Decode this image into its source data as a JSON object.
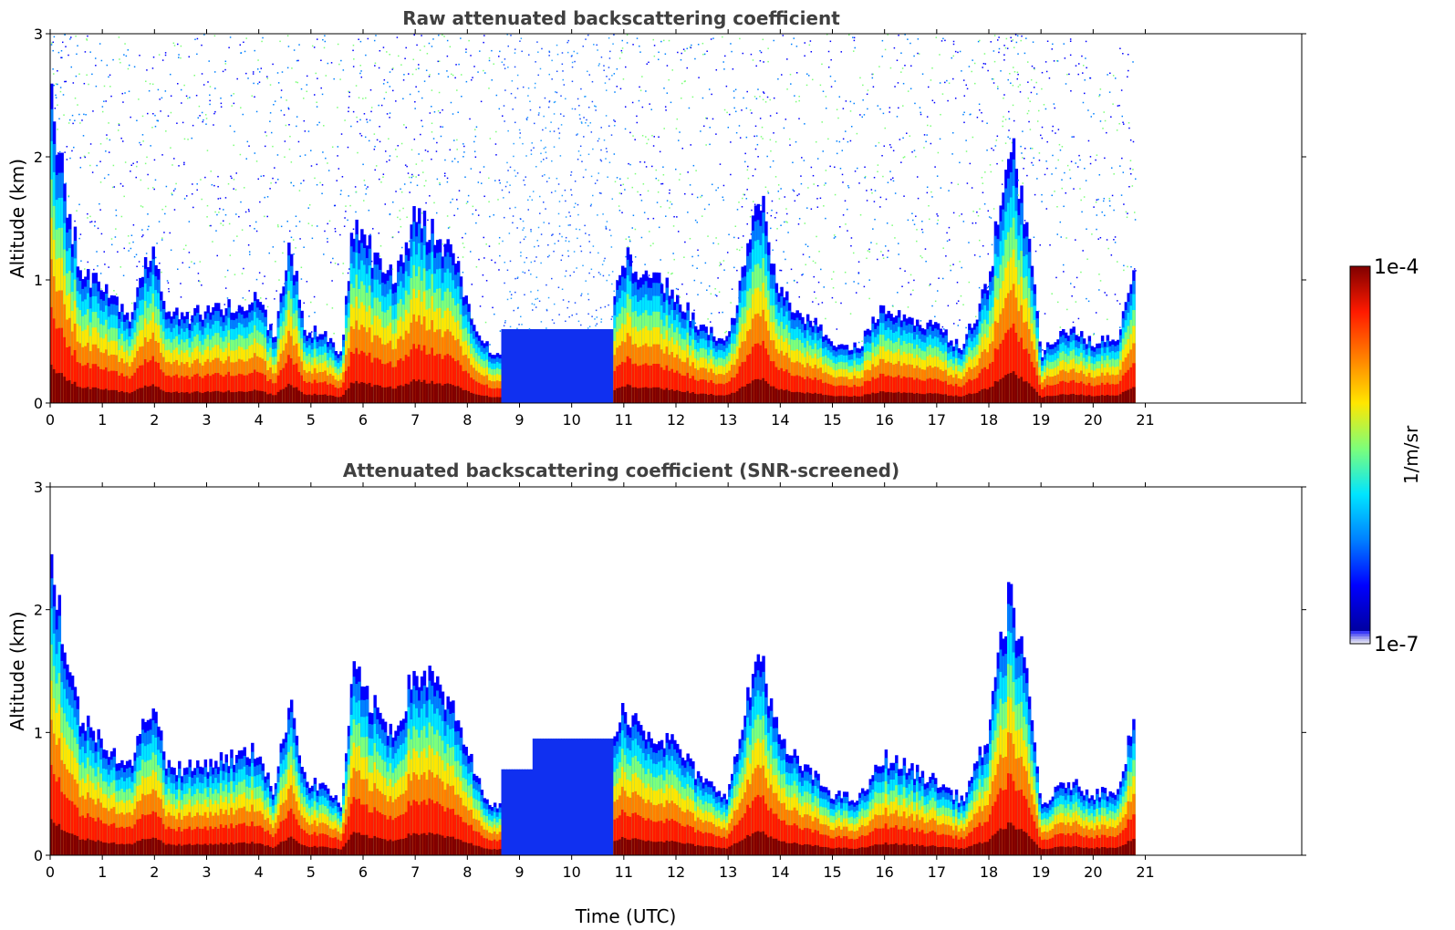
{
  "chart_data": [
    {
      "type": "heatmap",
      "title": "Raw attenuated backscattering coefficient",
      "xlabel": "",
      "ylabel": "Altitude (km)",
      "xlim": [
        0,
        24
      ],
      "ylim": [
        0,
        3
      ],
      "xticks": [
        0,
        1,
        2,
        3,
        4,
        5,
        6,
        7,
        8,
        9,
        10,
        11,
        12,
        13,
        14,
        15,
        16,
        17,
        18,
        19,
        20,
        21
      ],
      "yticks": [
        0,
        1,
        2,
        3
      ],
      "data_end_hour": 20.8,
      "screened": false
    },
    {
      "type": "heatmap",
      "title": "Attenuated backscattering coefficient (SNR-screened)",
      "xlabel": "Time (UTC)",
      "ylabel": "Altitude (km)",
      "xlim": [
        0,
        24
      ],
      "ylim": [
        0,
        3
      ],
      "xticks": [
        0,
        1,
        2,
        3,
        4,
        5,
        6,
        7,
        8,
        9,
        10,
        11,
        12,
        13,
        14,
        15,
        16,
        17,
        18,
        19,
        20,
        21
      ],
      "yticks": [
        0,
        1,
        2,
        3
      ],
      "data_end_hour": 20.8,
      "screened": true
    }
  ],
  "colorbar": {
    "label": "1/m/sr",
    "min_label": "1e-7",
    "max_label": "1e-4",
    "colors": [
      "#0000a0",
      "#0000ff",
      "#0080ff",
      "#00e5ff",
      "#7dff7a",
      "#ffe600",
      "#ff8000",
      "#ff1a00",
      "#800000"
    ],
    "low_colors": [
      "#e6e6f7",
      "#c3c3f0",
      "#9a9aef",
      "#6b6bf2",
      "#3a3af7"
    ]
  }
}
